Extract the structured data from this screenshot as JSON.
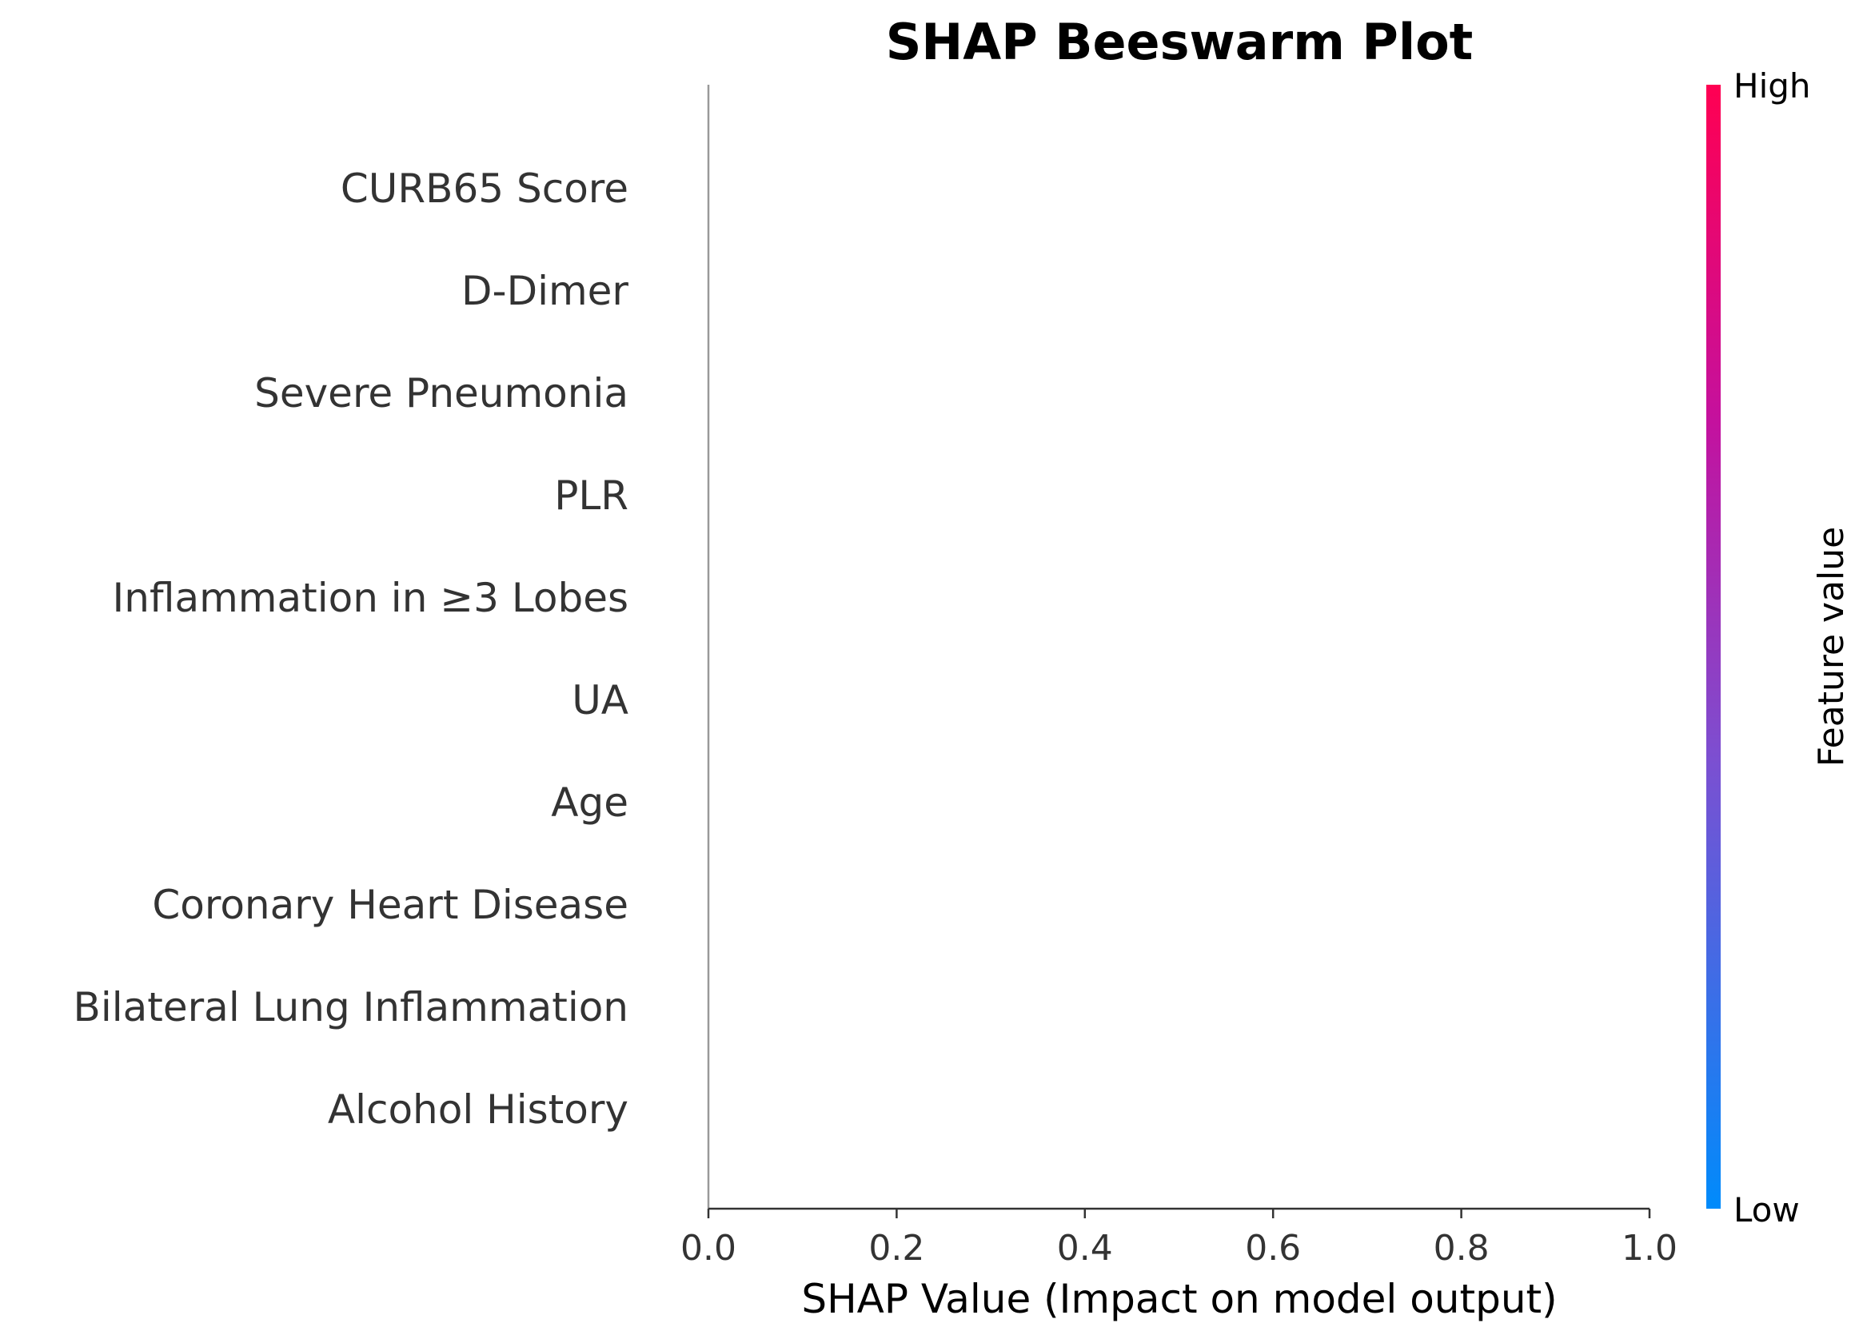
{
  "chart_data": {
    "type": "scatter",
    "title": "SHAP Beeswarm Plot",
    "xlabel": "SHAP Value (Impact on model output)",
    "ylabel": "",
    "xlim": [
      0.0,
      1.0
    ],
    "x_ticks": [
      "0.0",
      "0.2",
      "0.4",
      "0.6",
      "0.8",
      "1.0"
    ],
    "x_tick_values": [
      0.0,
      0.2,
      0.4,
      0.6,
      0.8,
      1.0
    ],
    "features": [
      "CURB65 Score",
      "D-Dimer",
      "Severe Pneumonia",
      "PLR",
      "Inflammation in ≥3 Lobes",
      "UA",
      "Age",
      "Coronary Heart Disease",
      "Bilateral Lung Inflammation",
      "Alcohol History"
    ],
    "points": [],
    "colorbar": {
      "label": "Feature value",
      "high_label": "High",
      "low_label": "Low",
      "high_color": "#ff0052",
      "mid_color": "#c4119e",
      "mid2_color": "#7c4fd1",
      "low_color": "#008bfb"
    },
    "legend": "none",
    "grid": false
  }
}
